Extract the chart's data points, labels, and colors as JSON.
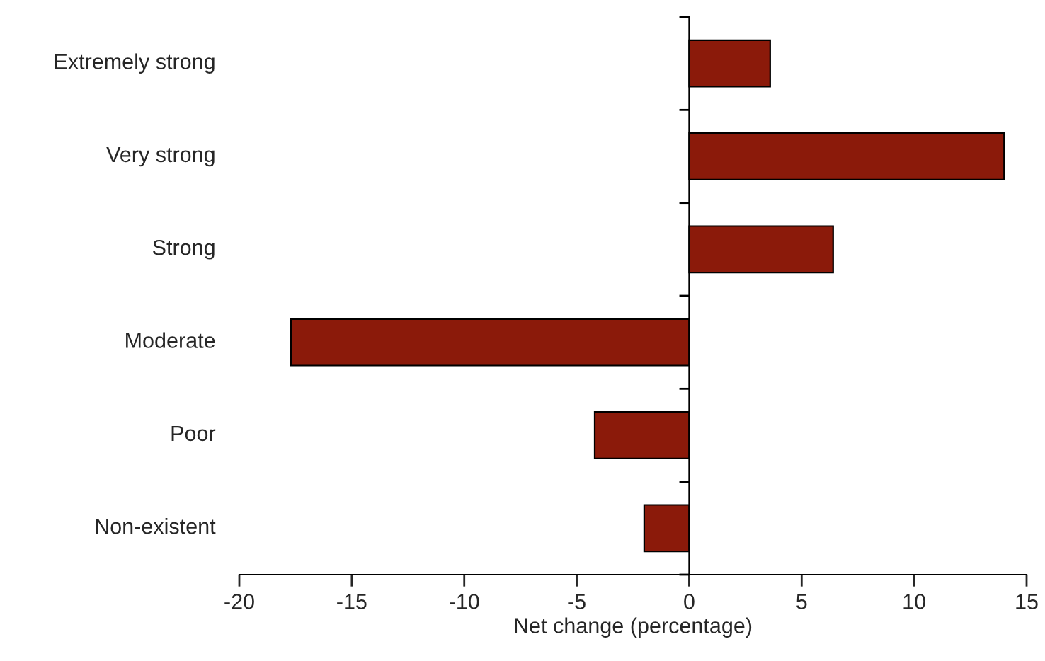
{
  "chart_data": {
    "type": "bar",
    "orientation": "horizontal",
    "xlabel": "Net change (percentage)",
    "categories": [
      "Extremely strong",
      "Very strong",
      "Strong",
      "Moderate",
      "Poor",
      "Non-existent"
    ],
    "values": [
      3.6,
      14.0,
      6.4,
      -17.7,
      -4.2,
      -2.0
    ],
    "color": "#8b1a0a",
    "xlim": [
      -20,
      15
    ],
    "xticks": [
      -20,
      -15,
      -10,
      -5,
      0,
      5,
      10,
      15
    ],
    "legend": false
  }
}
